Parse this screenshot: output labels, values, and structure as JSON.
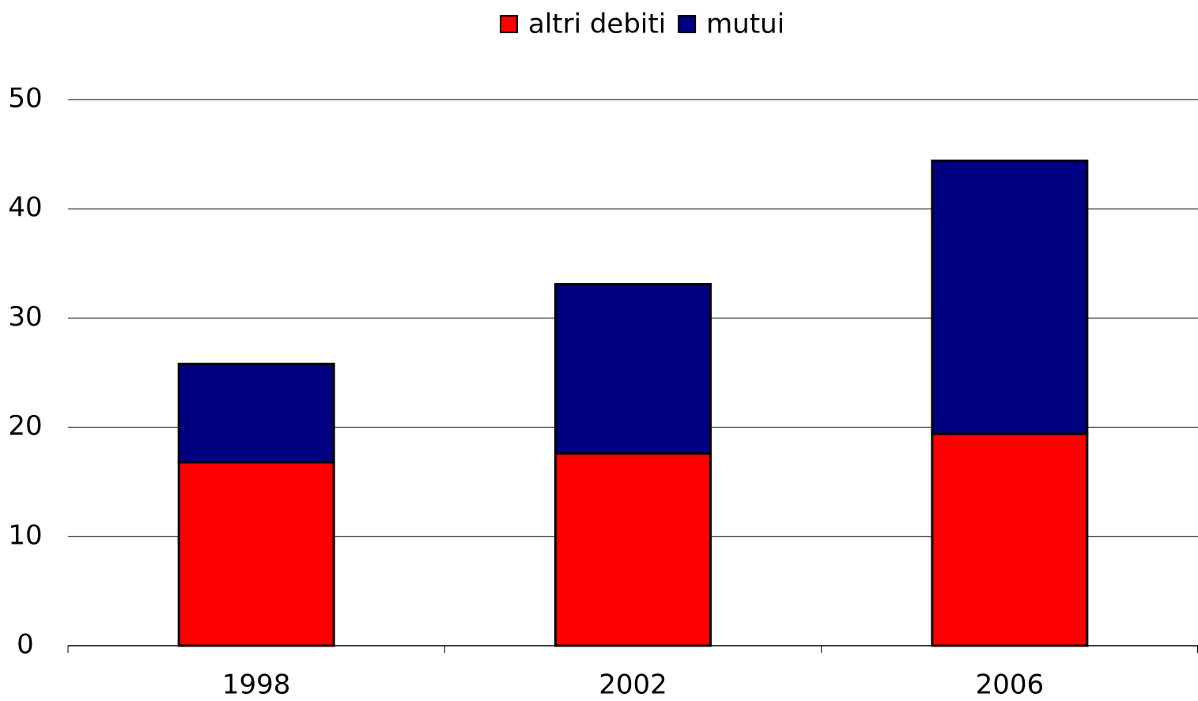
{
  "chart_data": {
    "type": "stacked_bar",
    "categories": [
      "1998",
      "2002",
      "2006"
    ],
    "series": [
      {
        "name": "altri debiti",
        "color": "#ff0000",
        "values": [
          16.8,
          17.6,
          19.4
        ]
      },
      {
        "name": "mutui",
        "color": "#000080",
        "values": [
          9.0,
          15.5,
          25.0
        ]
      }
    ],
    "ylim": [
      0,
      50
    ],
    "yticks": [
      0,
      10,
      20,
      30,
      40,
      50
    ],
    "grid": true,
    "legend": "top"
  }
}
